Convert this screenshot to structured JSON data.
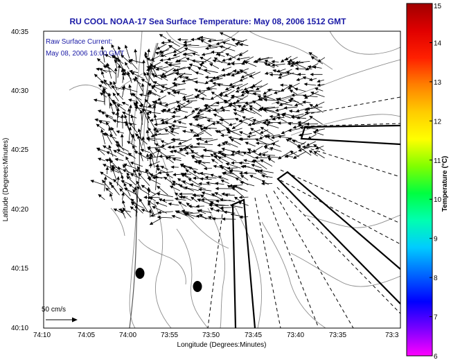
{
  "title": "RU COOL  NOAA-17  Sea Surface Temperature:  May 08, 2006 1512 GMT",
  "annotation": {
    "line1": "Raw Surface Current:",
    "line2": "May 08, 2006 16:00 GMT"
  },
  "scale_label": "50 cm/s",
  "axes": {
    "xlabel": "Longitude (Degrees:Minutes)",
    "ylabel": "Latitude (Degrees:Minutes)",
    "x_ticks": [
      "74:10",
      "74:05",
      "74:00",
      "73:55",
      "73:50",
      "73:45",
      "73:40",
      "73:35",
      "73:3"
    ],
    "y_ticks": [
      "40:35",
      "40:30",
      "40:25",
      "40:20",
      "40:15",
      "40:10"
    ]
  },
  "colorbar": {
    "label": "Temperature (°C)",
    "ticks": [
      "15",
      "14",
      "13",
      "12",
      "11",
      "10",
      "9",
      "8",
      "7",
      "6"
    ],
    "min": 6,
    "max": 15,
    "colors": [
      "#ff00ff",
      "#7a00ff",
      "#0000ff",
      "#0066ff",
      "#00ccff",
      "#00ffb0",
      "#00ff40",
      "#80ff00",
      "#ffff00",
      "#ffcc00",
      "#ff8000",
      "#ff2000",
      "#e00000",
      "#a00000"
    ]
  },
  "colors": {
    "title": "#1a1aa6",
    "annotation": "#1a1aa6",
    "contour": "#8c8c8c",
    "vectors": "#000000"
  }
}
